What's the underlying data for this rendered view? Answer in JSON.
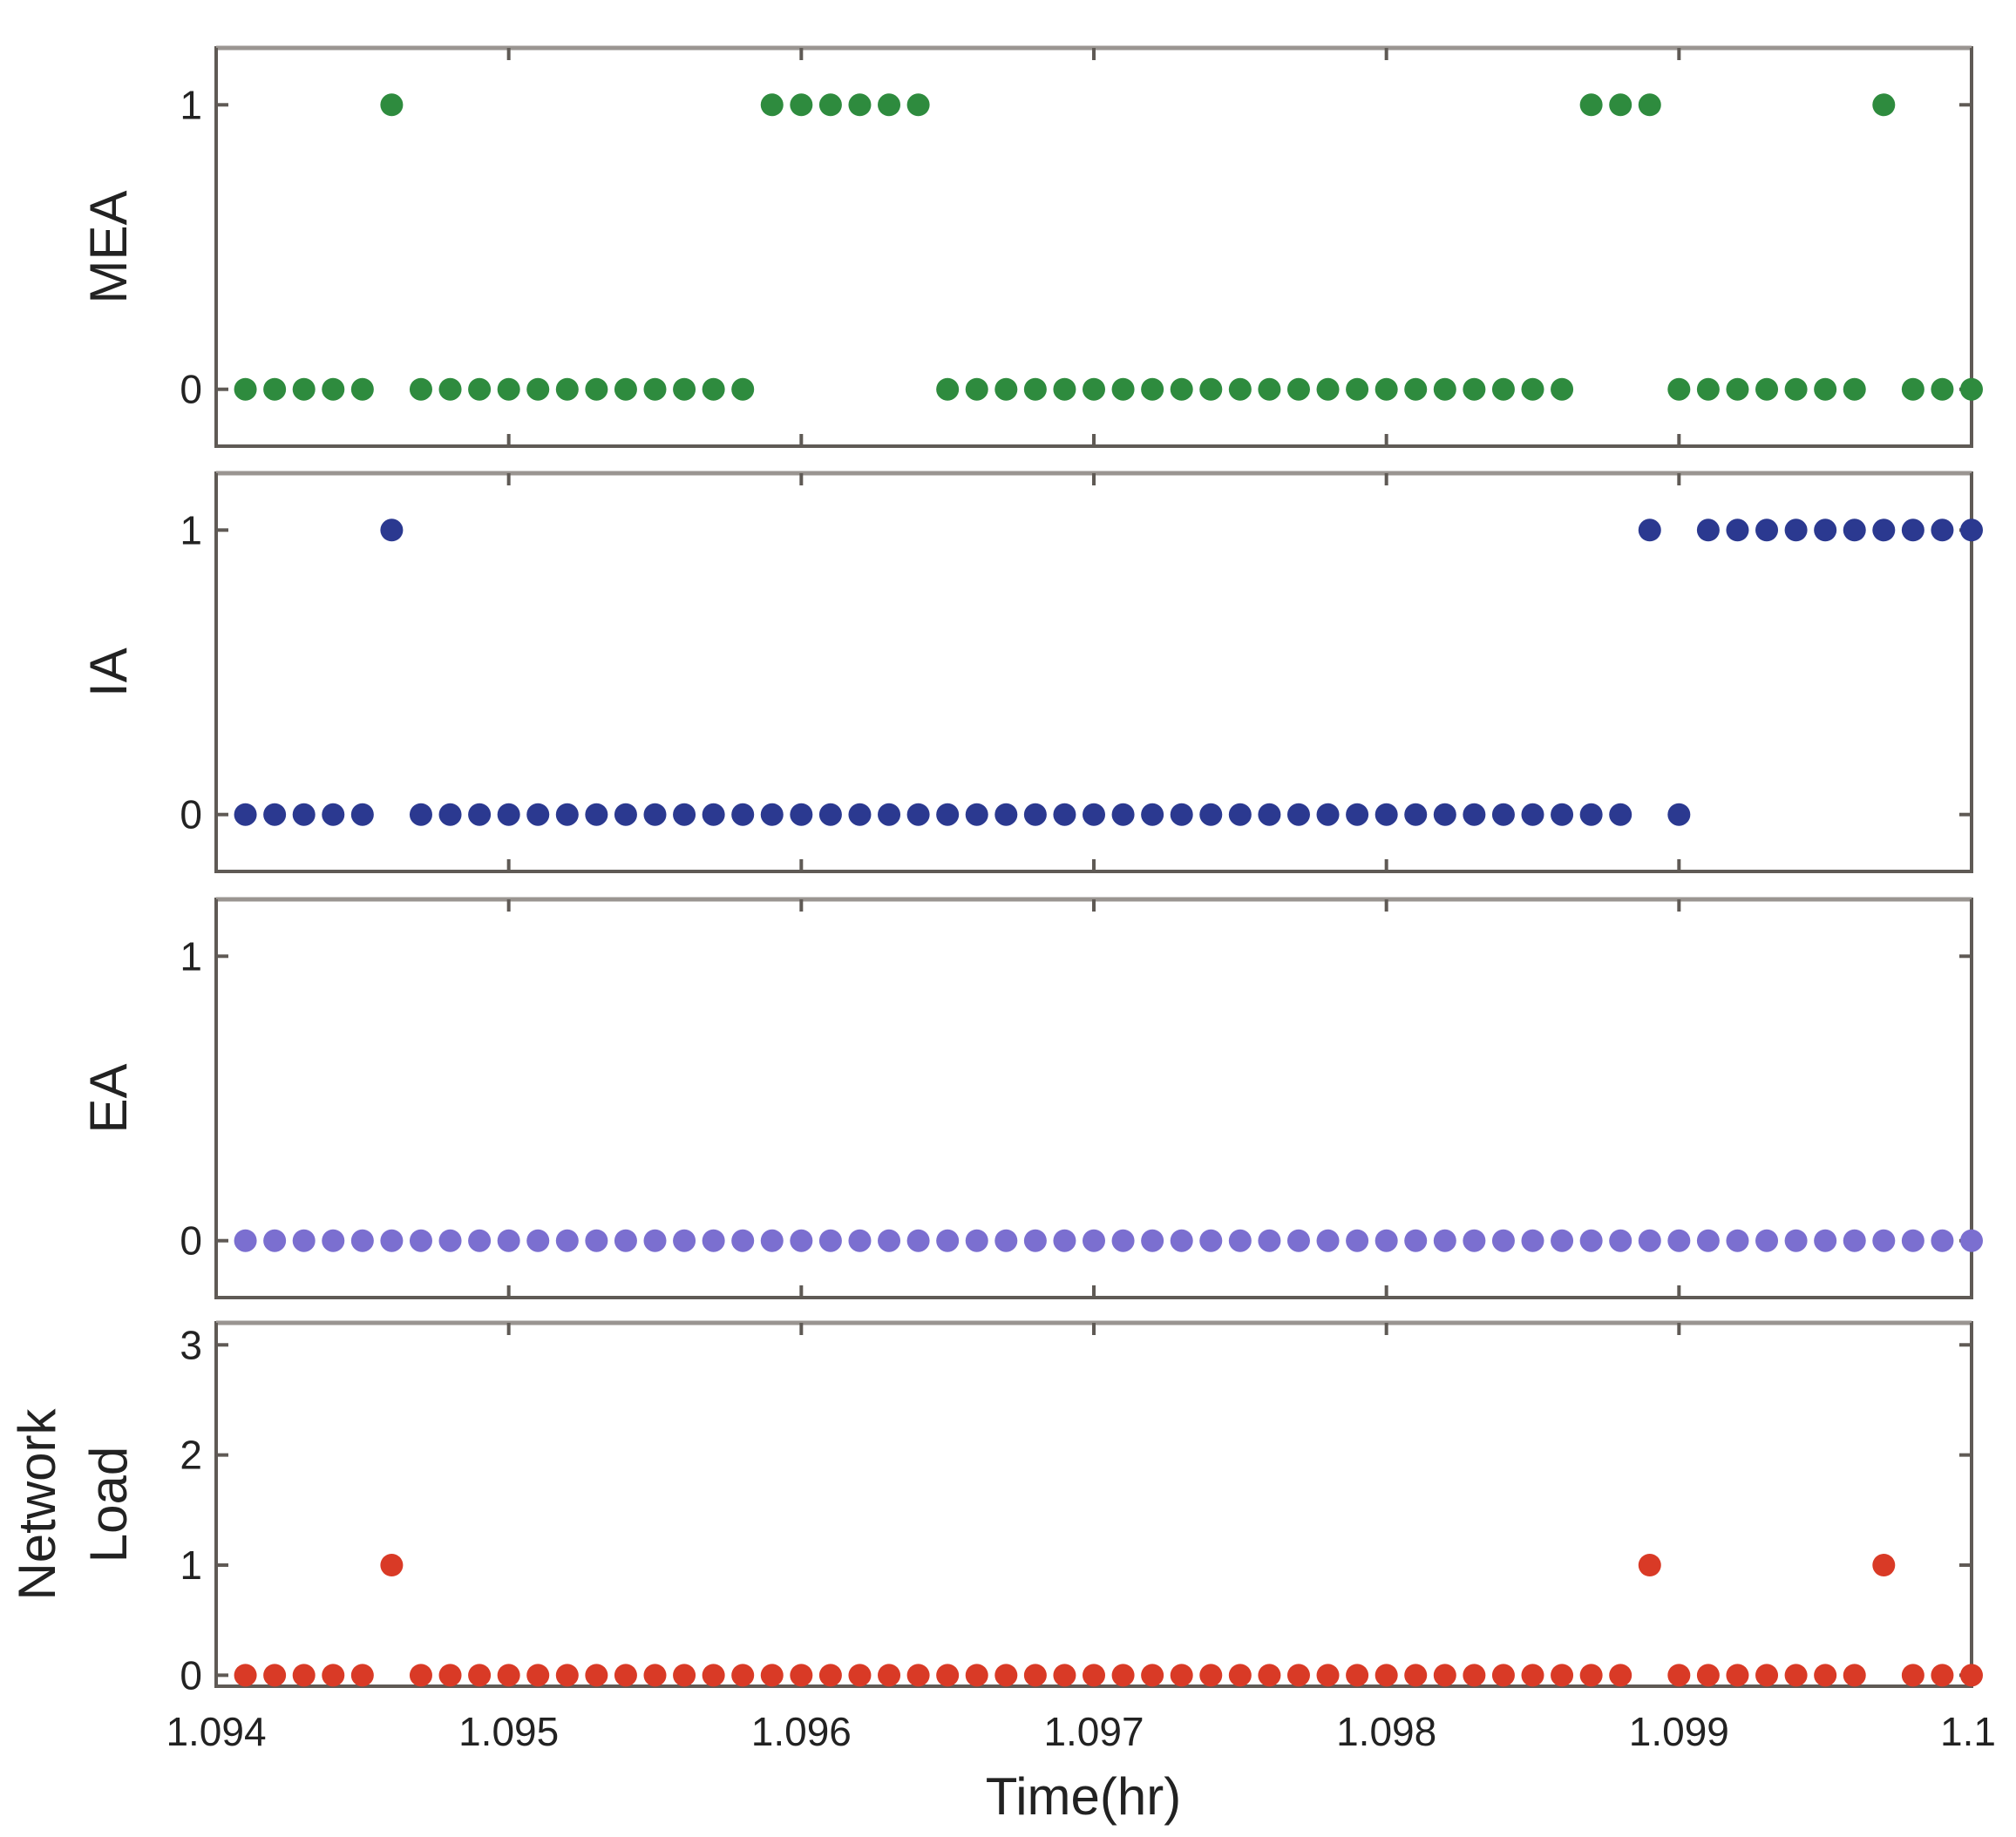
{
  "chart_data": {
    "type": "scatter",
    "xlabel": "Time(hr)",
    "xlim": [
      1.094,
      1.1
    ],
    "xticks": [
      1.094,
      1.095,
      1.096,
      1.097,
      1.098,
      1.099,
      1.1
    ],
    "xtick_labels": [
      "1.094",
      "1.095",
      "1.096",
      "1.097",
      "1.098",
      "1.099",
      "1.1"
    ],
    "grid": false,
    "panels": [
      {
        "id": "mea",
        "ylabel": [
          "MEA"
        ],
        "color": "#2e8b3e",
        "ylim": [
          -0.2,
          1.2
        ],
        "yticks": [
          0,
          1
        ],
        "ytick_labels": [
          "0",
          "1"
        ],
        "x_start": 1.0941,
        "x_step": 0.0001,
        "values": [
          0,
          0,
          0,
          0,
          0,
          1,
          0,
          0,
          0,
          0,
          0,
          0,
          0,
          0,
          0,
          0,
          0,
          0,
          1,
          1,
          1,
          1,
          1,
          1,
          0,
          0,
          0,
          0,
          0,
          0,
          0,
          0,
          0,
          0,
          0,
          0,
          0,
          0,
          0,
          0,
          0,
          0,
          0,
          0,
          0,
          0,
          1,
          1,
          1,
          0,
          0,
          0,
          0,
          0,
          0,
          0,
          1,
          0,
          0,
          0
        ]
      },
      {
        "id": "ia",
        "ylabel": [
          "IA"
        ],
        "color": "#2b3990",
        "ylim": [
          -0.2,
          1.2
        ],
        "yticks": [
          0,
          1
        ],
        "ytick_labels": [
          "0",
          "1"
        ],
        "x_start": 1.0941,
        "x_step": 0.0001,
        "values": [
          0,
          0,
          0,
          0,
          0,
          1,
          0,
          0,
          0,
          0,
          0,
          0,
          0,
          0,
          0,
          0,
          0,
          0,
          0,
          0,
          0,
          0,
          0,
          0,
          0,
          0,
          0,
          0,
          0,
          0,
          0,
          0,
          0,
          0,
          0,
          0,
          0,
          0,
          0,
          0,
          0,
          0,
          0,
          0,
          0,
          0,
          0,
          0,
          1,
          0,
          1,
          1,
          1,
          1,
          1,
          1,
          1,
          1,
          1,
          1
        ]
      },
      {
        "id": "ea",
        "ylabel": [
          "EA"
        ],
        "color": "#7b6fd0",
        "ylim": [
          -0.2,
          1.2
        ],
        "yticks": [
          0,
          1
        ],
        "ytick_labels": [
          "0",
          "1"
        ],
        "x_start": 1.0941,
        "x_step": 0.0001,
        "values": [
          0,
          0,
          0,
          0,
          0,
          0,
          0,
          0,
          0,
          0,
          0,
          0,
          0,
          0,
          0,
          0,
          0,
          0,
          0,
          0,
          0,
          0,
          0,
          0,
          0,
          0,
          0,
          0,
          0,
          0,
          0,
          0,
          0,
          0,
          0,
          0,
          0,
          0,
          0,
          0,
          0,
          0,
          0,
          0,
          0,
          0,
          0,
          0,
          0,
          0,
          0,
          0,
          0,
          0,
          0,
          0,
          0,
          0,
          0,
          0
        ]
      },
      {
        "id": "network-load",
        "ylabel": [
          "Network",
          "Load"
        ],
        "color": "#d93a26",
        "ylim": [
          -0.1,
          3.2
        ],
        "yticks": [
          0,
          1,
          2,
          3
        ],
        "ytick_labels": [
          "0",
          "1",
          "2",
          "3"
        ],
        "x_start": 1.0941,
        "x_step": 0.0001,
        "values": [
          0,
          0,
          0,
          0,
          0,
          1,
          0,
          0,
          0,
          0,
          0,
          0,
          0,
          0,
          0,
          0,
          0,
          0,
          0,
          0,
          0,
          0,
          0,
          0,
          0,
          0,
          0,
          0,
          0,
          0,
          0,
          0,
          0,
          0,
          0,
          0,
          0,
          0,
          0,
          0,
          0,
          0,
          0,
          0,
          0,
          0,
          0,
          0,
          1,
          0,
          0,
          0,
          0,
          0,
          0,
          0,
          1,
          0,
          0,
          0
        ]
      }
    ]
  }
}
